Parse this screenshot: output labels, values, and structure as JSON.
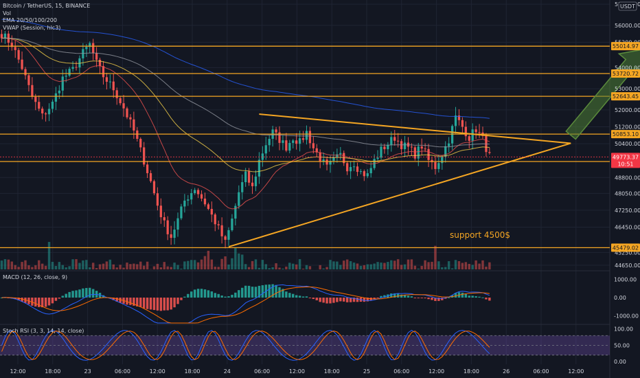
{
  "header": {
    "symbol_line": "Bitcoin / TetherUS, 15, BINANCE",
    "volume_label": "Vol",
    "ema_label": "EMA 20/50/100/200",
    "vwap_label": "VWAP (Session, hlc3)"
  },
  "currency_badge": "USDT",
  "macd": {
    "label": "MACD (12, 26, close, 9)",
    "ticks": [
      {
        "value": 1000,
        "label": "1000.00"
      },
      {
        "value": 0,
        "label": "0.00"
      },
      {
        "value": -1000,
        "label": "-1000.00"
      }
    ],
    "range": [
      -1400,
      1400
    ]
  },
  "stoch": {
    "label": "Stoch RSI (3, 3, 14, 14, close)",
    "ticks": [
      {
        "value": 100,
        "label": "100.00"
      },
      {
        "value": 50,
        "label": "50.00"
      },
      {
        "value": 0,
        "label": "0.00"
      }
    ],
    "band": [
      20,
      80
    ],
    "range": [
      -8,
      110
    ]
  },
  "annotation": {
    "text": "support 4500$",
    "color": "#f5a623"
  },
  "colors": {
    "background": "#131722",
    "grid": "#1f2433",
    "up": "#26a69a",
    "down": "#ef5350",
    "level": "#f5a623",
    "price_tag": "#f23645",
    "arrow": "#5b8a3c",
    "ema_blue": "#2962ff",
    "stoch_band": "#7e57c2"
  },
  "chart_data": {
    "type": "candlestick",
    "title": "Bitcoin / TetherUS, 15, BINANCE",
    "y_range": [
      44450,
      57200
    ],
    "y_ticks": [
      {
        "value": 57000,
        "label": "57000.00"
      },
      {
        "value": 56000,
        "label": "56000.00"
      },
      {
        "value": 55200,
        "label": "55200.00"
      },
      {
        "value": 54000,
        "label": "54000.00"
      },
      {
        "value": 53000,
        "label": "53000.00"
      },
      {
        "value": 52000,
        "label": "52000.00"
      },
      {
        "value": 51200,
        "label": "51200.00"
      },
      {
        "value": 50400,
        "label": "50400.00"
      },
      {
        "value": 48800,
        "label": "48800.00"
      },
      {
        "value": 48050,
        "label": "48050.00"
      },
      {
        "value": 47250,
        "label": "47250.00"
      },
      {
        "value": 46450,
        "label": "46450.00"
      },
      {
        "value": 45250,
        "label": "45250.00"
      },
      {
        "value": 44650,
        "label": "44650.00"
      }
    ],
    "x_labels": [
      "12:00",
      "18:00",
      "23",
      "06:00",
      "12:00",
      "18:00",
      "24",
      "06:00",
      "12:00",
      "18:00",
      "25",
      "06:00",
      "12:00",
      "18:00",
      "26",
      "06:00",
      "12:00"
    ],
    "horizontal_levels": [
      {
        "value": 55014.97,
        "label": "55014.97"
      },
      {
        "value": 53720.72,
        "label": "53720.72"
      },
      {
        "value": 52643.45,
        "label": "52643.45"
      },
      {
        "value": 50853.1,
        "label": "50853.10"
      },
      {
        "value": 49557.48,
        "label": "49557.48"
      },
      {
        "value": 45479.02,
        "label": "45479.02"
      }
    ],
    "current_price": {
      "value": 49773.37,
      "label": "49773.37",
      "countdown": "10:51"
    },
    "close_path": [
      [
        0,
        55600
      ],
      [
        3,
        55100
      ],
      [
        6,
        54000
      ],
      [
        9,
        52600
      ],
      [
        12,
        51700
      ],
      [
        15,
        52300
      ],
      [
        18,
        53500
      ],
      [
        21,
        53900
      ],
      [
        24,
        54700
      ],
      [
        26,
        55100
      ],
      [
        28,
        54200
      ],
      [
        30,
        53600
      ],
      [
        33,
        53000
      ],
      [
        36,
        52100
      ],
      [
        39,
        51000
      ],
      [
        42,
        49600
      ],
      [
        44,
        48600
      ],
      [
        46,
        47500
      ],
      [
        48,
        46600
      ],
      [
        50,
        46000
      ],
      [
        52,
        46800
      ],
      [
        54,
        47700
      ],
      [
        57,
        48300
      ],
      [
        60,
        47600
      ],
      [
        63,
        46700
      ],
      [
        66,
        45700
      ],
      [
        68,
        46800
      ],
      [
        70,
        48100
      ],
      [
        72,
        48900
      ],
      [
        74,
        48300
      ],
      [
        76,
        49600
      ],
      [
        78,
        50400
      ],
      [
        80,
        50950
      ],
      [
        82,
        50600
      ],
      [
        84,
        50250
      ],
      [
        86,
        50700
      ],
      [
        88,
        50450
      ],
      [
        90,
        50950
      ],
      [
        92,
        50200
      ],
      [
        94,
        49700
      ],
      [
        96,
        49250
      ],
      [
        98,
        49600
      ],
      [
        100,
        49850
      ],
      [
        102,
        49300
      ],
      [
        104,
        49500
      ],
      [
        106,
        49050
      ],
      [
        108,
        48900
      ],
      [
        110,
        49600
      ],
      [
        112,
        50100
      ],
      [
        114,
        50400
      ],
      [
        116,
        50700
      ],
      [
        118,
        50350
      ],
      [
        120,
        50200
      ],
      [
        122,
        49900
      ],
      [
        124,
        50300
      ],
      [
        126,
        49600
      ],
      [
        128,
        49300
      ],
      [
        130,
        49900
      ],
      [
        132,
        50600
      ],
      [
        134,
        51650
      ],
      [
        136,
        51200
      ],
      [
        138,
        50700
      ],
      [
        140,
        51100
      ],
      [
        142,
        50600
      ],
      [
        144,
        49800
      ]
    ],
    "volume_range": [
      0,
      8
    ],
    "triangle": {
      "upper": {
        "from": [
          76,
          51800
        ],
        "to": [
          168,
          50420
        ]
      },
      "lower": {
        "from": [
          67,
          45520
        ],
        "to": [
          168,
          50420
        ]
      }
    },
    "arrow": {
      "from": [
        168,
        50800
      ],
      "to": [
        189,
        54850
      ]
    }
  }
}
